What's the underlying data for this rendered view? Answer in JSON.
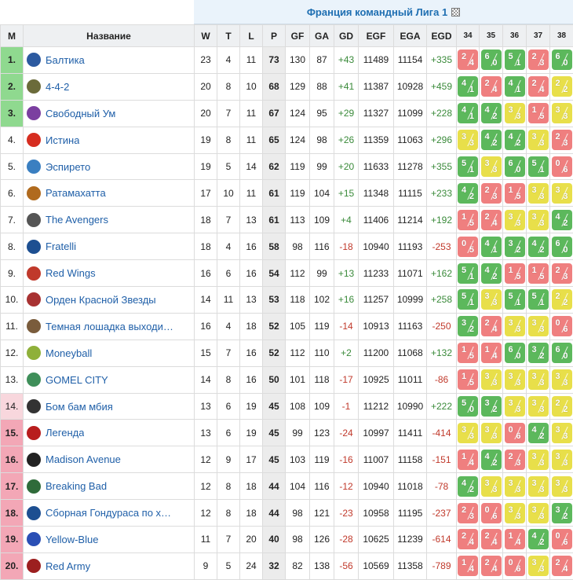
{
  "title": "Франция командный Лига 1",
  "title_icon": "table-icon",
  "headers": {
    "pos": "М",
    "team": "Название",
    "w": "W",
    "t": "T",
    "l": "L",
    "p": "P",
    "gf": "GF",
    "ga": "GA",
    "gd": "GD",
    "egf": "EGF",
    "ega": "EGA",
    "egd": "EGD",
    "rounds": [
      "34",
      "35",
      "36",
      "37",
      "38"
    ]
  },
  "colors": {
    "win": "#5cb85c",
    "draw": "#e8df4a",
    "loss": "#ef7f7f",
    "top_zone": "#8fd98f",
    "bottom_zone": "#f3a7b6",
    "link": "#1f5fa8"
  },
  "rows": [
    {
      "pos": "1.",
      "zone": "top",
      "team": "Балтика",
      "logo": "#2c5aa0",
      "w": "23",
      "t": "4",
      "l": "11",
      "p": "73",
      "gf": "130",
      "ga": "87",
      "gd": "+43",
      "egf": "11489",
      "ega": "11154",
      "egd": "+335",
      "r": [
        [
          "2",
          "4",
          "l"
        ],
        [
          "6",
          "0",
          "w"
        ],
        [
          "5",
          "1",
          "w"
        ],
        [
          "2",
          "3",
          "l"
        ],
        [
          "6",
          "0",
          "w"
        ]
      ]
    },
    {
      "pos": "2.",
      "zone": "top",
      "team": "4-4-2",
      "logo": "#6b6b3a",
      "w": "20",
      "t": "8",
      "l": "10",
      "p": "68",
      "gf": "129",
      "ga": "88",
      "gd": "+41",
      "egf": "11387",
      "ega": "10928",
      "egd": "+459",
      "r": [
        [
          "4",
          "1",
          "w"
        ],
        [
          "2",
          "4",
          "l"
        ],
        [
          "4",
          "1",
          "w"
        ],
        [
          "2",
          "4",
          "l"
        ],
        [
          "2",
          "2",
          "d"
        ]
      ]
    },
    {
      "pos": "3.",
      "zone": "top",
      "team": "Свободный Ум",
      "logo": "#7b3fa0",
      "w": "20",
      "t": "7",
      "l": "11",
      "p": "67",
      "gf": "124",
      "ga": "95",
      "gd": "+29",
      "egf": "11327",
      "ega": "11099",
      "egd": "+228",
      "r": [
        [
          "4",
          "1",
          "w"
        ],
        [
          "4",
          "2",
          "w"
        ],
        [
          "3",
          "3",
          "d"
        ],
        [
          "1",
          "5",
          "l"
        ],
        [
          "3",
          "3",
          "d"
        ]
      ]
    },
    {
      "pos": "4.",
      "zone": "",
      "team": "Истина",
      "logo": "#d62d20",
      "w": "19",
      "t": "8",
      "l": "11",
      "p": "65",
      "gf": "124",
      "ga": "98",
      "gd": "+26",
      "egf": "11359",
      "ega": "11063",
      "egd": "+296",
      "r": [
        [
          "3",
          "3",
          "d"
        ],
        [
          "4",
          "2",
          "w"
        ],
        [
          "4",
          "2",
          "w"
        ],
        [
          "3",
          "3",
          "d"
        ],
        [
          "2",
          "3",
          "l"
        ]
      ]
    },
    {
      "pos": "5.",
      "zone": "",
      "team": "Эспирето",
      "logo": "#3a7fc1",
      "w": "19",
      "t": "5",
      "l": "14",
      "p": "62",
      "gf": "119",
      "ga": "99",
      "gd": "+20",
      "egf": "11633",
      "ega": "11278",
      "egd": "+355",
      "r": [
        [
          "5",
          "1",
          "w"
        ],
        [
          "3",
          "3",
          "d"
        ],
        [
          "6",
          "0",
          "w"
        ],
        [
          "5",
          "1",
          "w"
        ],
        [
          "0",
          "6",
          "l"
        ]
      ]
    },
    {
      "pos": "6.",
      "zone": "",
      "team": "Ратамахатта",
      "logo": "#b06a1e",
      "w": "17",
      "t": "10",
      "l": "11",
      "p": "61",
      "gf": "119",
      "ga": "104",
      "gd": "+15",
      "egf": "11348",
      "ega": "11115",
      "egd": "+233",
      "r": [
        [
          "4",
          "2",
          "w"
        ],
        [
          "2",
          "3",
          "l"
        ],
        [
          "1",
          "5",
          "l"
        ],
        [
          "3",
          "3",
          "d"
        ],
        [
          "3",
          "3",
          "d"
        ]
      ]
    },
    {
      "pos": "7.",
      "zone": "",
      "team": "The Avengers",
      "logo": "#555555",
      "w": "18",
      "t": "7",
      "l": "13",
      "p": "61",
      "gf": "113",
      "ga": "109",
      "gd": "+4",
      "egf": "11406",
      "ega": "11214",
      "egd": "+192",
      "r": [
        [
          "1",
          "5",
          "l"
        ],
        [
          "2",
          "4",
          "l"
        ],
        [
          "3",
          "3",
          "d"
        ],
        [
          "3",
          "3",
          "d"
        ],
        [
          "4",
          "2",
          "w"
        ]
      ]
    },
    {
      "pos": "8.",
      "zone": "",
      "team": "Fratelli",
      "logo": "#1d4f91",
      "w": "18",
      "t": "4",
      "l": "16",
      "p": "58",
      "gf": "98",
      "ga": "116",
      "gd": "-18",
      "egf": "10940",
      "ega": "11193",
      "egd": "-253",
      "r": [
        [
          "0",
          "5",
          "l"
        ],
        [
          "4",
          "1",
          "w"
        ],
        [
          "3",
          "2",
          "w"
        ],
        [
          "4",
          "2",
          "w"
        ],
        [
          "6",
          "0",
          "w"
        ]
      ]
    },
    {
      "pos": "9.",
      "zone": "",
      "team": "Red Wings",
      "logo": "#c0392b",
      "w": "16",
      "t": "6",
      "l": "16",
      "p": "54",
      "gf": "112",
      "ga": "99",
      "gd": "+13",
      "egf": "11233",
      "ega": "11071",
      "egd": "+162",
      "r": [
        [
          "5",
          "1",
          "w"
        ],
        [
          "4",
          "2",
          "w"
        ],
        [
          "1",
          "5",
          "l"
        ],
        [
          "1",
          "5",
          "l"
        ],
        [
          "2",
          "3",
          "l"
        ]
      ]
    },
    {
      "pos": "10.",
      "zone": "",
      "team": "Орден Красной Звезды",
      "logo": "#a83232",
      "w": "14",
      "t": "11",
      "l": "13",
      "p": "53",
      "gf": "118",
      "ga": "102",
      "gd": "+16",
      "egf": "11257",
      "ega": "10999",
      "egd": "+258",
      "r": [
        [
          "5",
          "1",
          "w"
        ],
        [
          "3",
          "3",
          "d"
        ],
        [
          "5",
          "1",
          "w"
        ],
        [
          "5",
          "1",
          "w"
        ],
        [
          "2",
          "2",
          "d"
        ]
      ]
    },
    {
      "pos": "11.",
      "zone": "",
      "team": "Темная лошадка выходи…",
      "logo": "#7a5c3c",
      "w": "16",
      "t": "4",
      "l": "18",
      "p": "52",
      "gf": "105",
      "ga": "119",
      "gd": "-14",
      "egf": "10913",
      "ega": "11163",
      "egd": "-250",
      "r": [
        [
          "3",
          "2",
          "w"
        ],
        [
          "2",
          "4",
          "l"
        ],
        [
          "3",
          "3",
          "d"
        ],
        [
          "3",
          "3",
          "d"
        ],
        [
          "0",
          "6",
          "l"
        ]
      ]
    },
    {
      "pos": "12.",
      "zone": "",
      "team": "Moneyball",
      "logo": "#8fb03a",
      "w": "15",
      "t": "7",
      "l": "16",
      "p": "52",
      "gf": "112",
      "ga": "110",
      "gd": "+2",
      "egf": "11200",
      "ega": "11068",
      "egd": "+132",
      "r": [
        [
          "1",
          "5",
          "l"
        ],
        [
          "1",
          "4",
          "l"
        ],
        [
          "6",
          "0",
          "w"
        ],
        [
          "3",
          "2",
          "w"
        ],
        [
          "6",
          "0",
          "w"
        ]
      ]
    },
    {
      "pos": "13.",
      "zone": "",
      "team": "GOMEL CITY",
      "logo": "#3f8f5a",
      "w": "14",
      "t": "8",
      "l": "16",
      "p": "50",
      "gf": "101",
      "ga": "118",
      "gd": "-17",
      "egf": "10925",
      "ega": "11011",
      "egd": "-86",
      "r": [
        [
          "1",
          "5",
          "l"
        ],
        [
          "3",
          "3",
          "d"
        ],
        [
          "3",
          "3",
          "d"
        ],
        [
          "3",
          "3",
          "d"
        ],
        [
          "3",
          "3",
          "d"
        ]
      ]
    },
    {
      "pos": "14.",
      "zone": "mid-pink",
      "team": "Бом бам мбия",
      "logo": "#333333",
      "w": "13",
      "t": "6",
      "l": "19",
      "p": "45",
      "gf": "108",
      "ga": "109",
      "gd": "-1",
      "egf": "11212",
      "ega": "10990",
      "egd": "+222",
      "r": [
        [
          "5",
          "0",
          "w"
        ],
        [
          "3",
          "2",
          "w"
        ],
        [
          "3",
          "3",
          "d"
        ],
        [
          "3",
          "3",
          "d"
        ],
        [
          "2",
          "2",
          "d"
        ]
      ]
    },
    {
      "pos": "15.",
      "zone": "bottom",
      "team": "Легенда",
      "logo": "#b81d1d",
      "w": "13",
      "t": "6",
      "l": "19",
      "p": "45",
      "gf": "99",
      "ga": "123",
      "gd": "-24",
      "egf": "10997",
      "ega": "11411",
      "egd": "-414",
      "r": [
        [
          "3",
          "3",
          "d"
        ],
        [
          "3",
          "3",
          "d"
        ],
        [
          "0",
          "6",
          "l"
        ],
        [
          "4",
          "2",
          "w"
        ],
        [
          "3",
          "3",
          "d"
        ]
      ]
    },
    {
      "pos": "16.",
      "zone": "bottom",
      "team": "Madison Avenue",
      "logo": "#222222",
      "w": "12",
      "t": "9",
      "l": "17",
      "p": "45",
      "gf": "103",
      "ga": "119",
      "gd": "-16",
      "egf": "11007",
      "ega": "11158",
      "egd": "-151",
      "r": [
        [
          "1",
          "4",
          "l"
        ],
        [
          "4",
          "2",
          "w"
        ],
        [
          "2",
          "3",
          "l"
        ],
        [
          "3",
          "3",
          "d"
        ],
        [
          "3",
          "3",
          "d"
        ]
      ]
    },
    {
      "pos": "17.",
      "zone": "bottom",
      "team": "Breaking Bad",
      "logo": "#2f6b3a",
      "w": "12",
      "t": "8",
      "l": "18",
      "p": "44",
      "gf": "104",
      "ga": "116",
      "gd": "-12",
      "egf": "10940",
      "ega": "11018",
      "egd": "-78",
      "r": [
        [
          "4",
          "2",
          "w"
        ],
        [
          "3",
          "3",
          "d"
        ],
        [
          "3",
          "3",
          "d"
        ],
        [
          "3",
          "3",
          "d"
        ],
        [
          "3",
          "3",
          "d"
        ]
      ]
    },
    {
      "pos": "18.",
      "zone": "bottom",
      "team": "Сборная Гондураса по х…",
      "logo": "#1d4f91",
      "w": "12",
      "t": "8",
      "l": "18",
      "p": "44",
      "gf": "98",
      "ga": "121",
      "gd": "-23",
      "egf": "10958",
      "ega": "11195",
      "egd": "-237",
      "r": [
        [
          "2",
          "3",
          "l"
        ],
        [
          "0",
          "6",
          "l"
        ],
        [
          "3",
          "3",
          "d"
        ],
        [
          "3",
          "3",
          "d"
        ],
        [
          "3",
          "2",
          "w"
        ]
      ]
    },
    {
      "pos": "19.",
      "zone": "bottom",
      "team": "Yellow-Blue",
      "logo": "#2a4fb5",
      "w": "11",
      "t": "7",
      "l": "20",
      "p": "40",
      "gf": "98",
      "ga": "126",
      "gd": "-28",
      "egf": "10625",
      "ega": "11239",
      "egd": "-614",
      "r": [
        [
          "2",
          "4",
          "l"
        ],
        [
          "2",
          "4",
          "l"
        ],
        [
          "1",
          "4",
          "l"
        ],
        [
          "4",
          "2",
          "w"
        ],
        [
          "0",
          "6",
          "l"
        ]
      ]
    },
    {
      "pos": "20.",
      "zone": "bottom",
      "team": "Red Army",
      "logo": "#9c1f1f",
      "w": "9",
      "t": "5",
      "l": "24",
      "p": "32",
      "gf": "82",
      "ga": "138",
      "gd": "-56",
      "egf": "10569",
      "ega": "11358",
      "egd": "-789",
      "r": [
        [
          "1",
          "4",
          "l"
        ],
        [
          "2",
          "4",
          "l"
        ],
        [
          "0",
          "6",
          "l"
        ],
        [
          "3",
          "3",
          "d"
        ],
        [
          "2",
          "4",
          "l"
        ]
      ]
    }
  ]
}
